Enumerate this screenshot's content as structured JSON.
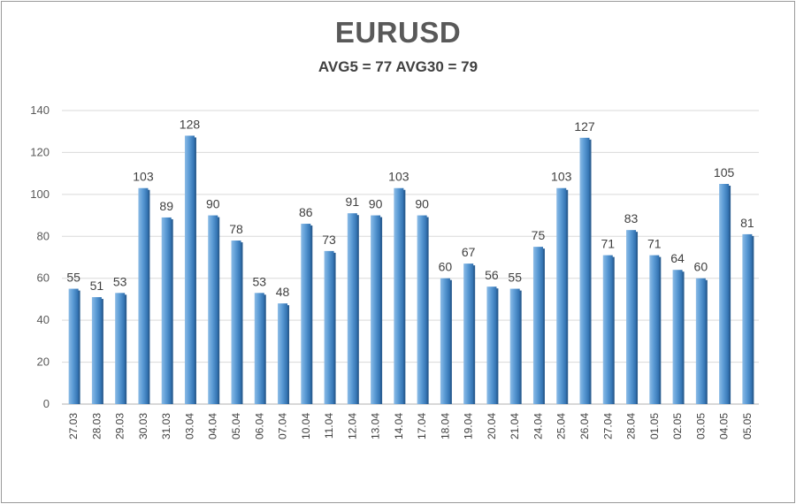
{
  "chart_data": {
    "type": "bar",
    "title": "EURUSD",
    "subtitle": "AVG5 = 77 AVG30 = 79",
    "categories": [
      "27.03",
      "28.03",
      "29.03",
      "30.03",
      "31.03",
      "03.04",
      "04.04",
      "05.04",
      "06.04",
      "07.04",
      "10.04",
      "11.04",
      "12.04",
      "13.04",
      "14.04",
      "17.04",
      "18.04",
      "19.04",
      "20.04",
      "21.04",
      "24.04",
      "25.04",
      "26.04",
      "27.04",
      "28.04",
      "01.05",
      "02.05",
      "03.05",
      "04.05",
      "05.05"
    ],
    "values": [
      55,
      51,
      53,
      103,
      89,
      128,
      90,
      78,
      53,
      48,
      86,
      73,
      91,
      90,
      103,
      90,
      60,
      67,
      56,
      55,
      75,
      103,
      127,
      71,
      83,
      71,
      64,
      60,
      105,
      81
    ],
    "ylim": [
      0,
      140
    ],
    "yticks": [
      0,
      20,
      40,
      60,
      80,
      100,
      120,
      140
    ],
    "grid": true,
    "bar_color": "#5b9bd5"
  }
}
